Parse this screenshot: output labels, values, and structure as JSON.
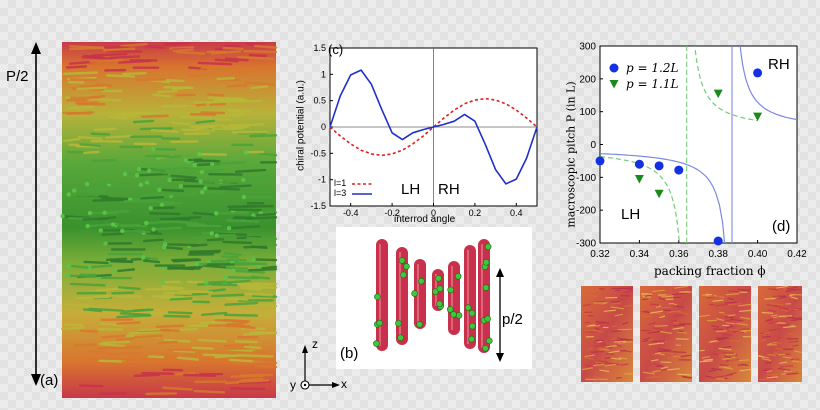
{
  "figure": {
    "panel_a": {
      "label": "(a)",
      "pitch_label": "P/2",
      "colors": {
        "red": "#c8324a",
        "orange": "#d8782e",
        "yellow": "#b8b838",
        "green": "#4aa33a",
        "dark_green": "#2f7a2c"
      }
    },
    "panel_b": {
      "label": "(b)",
      "pitch_label": "p/2",
      "axes": {
        "z": "z",
        "x": "x",
        "y": "y"
      },
      "rod_color": "#c8304c",
      "bead_color": "#3ec83a"
    },
    "panel_d_label": "(d)",
    "bottom_snapshots": {
      "count": 4
    }
  },
  "chart_data": [
    {
      "id": "c",
      "type": "line",
      "panel_label": "(c)",
      "title": "",
      "xlabel": "interrod angle",
      "ylabel": "chiral potential (a.u.)",
      "xlim": [
        -0.5,
        0.5
      ],
      "ylim": [
        -1.5,
        1.5
      ],
      "xticks": [
        -0.4,
        -0.2,
        0,
        0.2,
        0.4
      ],
      "xtick_labels": [
        "-0.4",
        "-0.2",
        "0",
        "0.2",
        "0.4"
      ],
      "yticks": [
        -1.5,
        -1,
        -0.5,
        0,
        0.5,
        1,
        1.5
      ],
      "ytick_labels": [
        "-1.5",
        "-1",
        "-0.5",
        "0",
        "0.5",
        "1",
        "1.5"
      ],
      "annotations": {
        "left": "LH",
        "right": "RH"
      },
      "series": [
        {
          "name": "l=1",
          "style": "dashed",
          "color": "#e02020",
          "x": [
            -0.5,
            -0.45,
            -0.4,
            -0.35,
            -0.3,
            -0.25,
            -0.2,
            -0.15,
            -0.1,
            -0.05,
            0,
            0.05,
            0.1,
            0.15,
            0.2,
            0.25,
            0.3,
            0.35,
            0.4,
            0.45,
            0.5
          ],
          "y": [
            0,
            -0.17,
            -0.32,
            -0.44,
            -0.51,
            -0.54,
            -0.51,
            -0.44,
            -0.32,
            -0.17,
            0,
            0.17,
            0.32,
            0.44,
            0.51,
            0.54,
            0.51,
            0.44,
            0.32,
            0.17,
            0
          ]
        },
        {
          "name": "l=3",
          "style": "solid",
          "color": "#2030c8",
          "x": [
            -0.5,
            -0.45,
            -0.4,
            -0.35,
            -0.3,
            -0.25,
            -0.2,
            -0.15,
            -0.1,
            -0.05,
            0,
            0.05,
            0.1,
            0.15,
            0.2,
            0.25,
            0.3,
            0.35,
            0.4,
            0.45,
            0.5
          ],
          "y": [
            0,
            0.59,
            0.99,
            1.08,
            0.81,
            0.33,
            -0.11,
            -0.24,
            -0.11,
            -0.05,
            0,
            0.05,
            0.11,
            0.24,
            0.11,
            -0.33,
            -0.81,
            -1.08,
            -0.99,
            -0.59,
            0
          ]
        }
      ]
    },
    {
      "id": "d",
      "type": "scatter",
      "panel_label": "(d)",
      "title": "",
      "xlabel": "packing fraction ϕ",
      "ylabel": "macroscopic pitch P (in L)",
      "xlim": [
        0.32,
        0.42
      ],
      "ylim": [
        -300,
        300
      ],
      "xticks": [
        0.32,
        0.34,
        0.36,
        0.38,
        0.4,
        0.42
      ],
      "xtick_labels": [
        "0.32",
        "0.34",
        "0.36",
        "0.38",
        "0.40",
        "0.42"
      ],
      "yticks": [
        -300,
        -200,
        -100,
        0,
        100,
        200,
        300
      ],
      "ytick_labels": [
        "-300",
        "-200",
        "-100",
        "0",
        "100",
        "200",
        "300"
      ],
      "annotations": {
        "left": "LH",
        "right": "RH"
      },
      "legend": [
        {
          "label": "p = 1.2L",
          "marker": "circle",
          "color": "#1430e0"
        },
        {
          "label": "p = 1.1L",
          "marker": "triangle",
          "color": "#1a8a1a"
        }
      ],
      "series": [
        {
          "name": "p = 1.2L",
          "marker": "circle",
          "color": "#1430e0",
          "x": [
            0.32,
            0.34,
            0.35,
            0.36,
            0.38,
            0.4
          ],
          "y": [
            -50,
            -60,
            -65,
            -78,
            -295,
            218
          ]
        },
        {
          "name": "p = 1.1L",
          "marker": "triangle",
          "color": "#1a8a1a",
          "x": [
            0.34,
            0.35,
            0.38,
            0.4
          ],
          "y": [
            -105,
            -150,
            155,
            85
          ]
        }
      ],
      "divergence": [
        {
          "series": "p = 1.2L",
          "phi": 0.387,
          "style": "solid",
          "color": "#7a8ae0"
        },
        {
          "series": "p = 1.1L",
          "phi": 0.364,
          "style": "dashed",
          "color": "#7ac87a"
        }
      ]
    }
  ]
}
